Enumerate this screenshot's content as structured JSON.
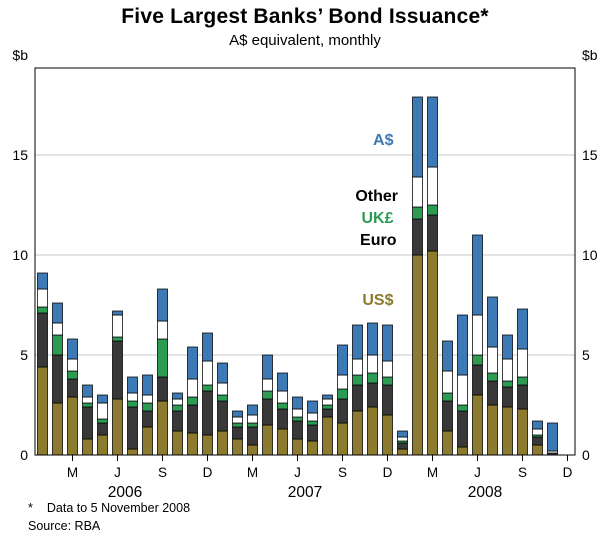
{
  "header": {
    "title": "Five Largest Banks’ Bond Issuance*",
    "subtitle": "A$ equivalent, monthly"
  },
  "chart_data": {
    "type": "bar",
    "stacked": true,
    "title": "Five Largest Banks’ Bond Issuance*",
    "subtitle": "A$ equivalent, monthly",
    "unit_label": "$b",
    "ylim": [
      0,
      19.35
    ],
    "yticks": [
      0,
      5,
      10,
      15
    ],
    "grid": true,
    "categories": [
      "Jan 2006",
      "Feb 2006",
      "Mar 2006",
      "Apr 2006",
      "May 2006",
      "Jun 2006",
      "Jul 2006",
      "Aug 2006",
      "Sep 2006",
      "Oct 2006",
      "Nov 2006",
      "Dec 2006",
      "Jan 2007",
      "Feb 2007",
      "Mar 2007",
      "Apr 2007",
      "May 2007",
      "Jun 2007",
      "Jul 2007",
      "Aug 2007",
      "Sep 2007",
      "Oct 2007",
      "Nov 2007",
      "Dec 2007",
      "Jan 2008",
      "Feb 2008",
      "Mar 2008",
      "Apr 2008",
      "May 2008",
      "Jun 2008",
      "Jul 2008",
      "Aug 2008",
      "Sep 2008",
      "Oct 2008",
      "Nov 2008"
    ],
    "series": [
      {
        "name": "US$",
        "color": "#8C7A2E",
        "values": [
          4.4,
          2.6,
          2.9,
          0.8,
          1.0,
          2.8,
          0.3,
          1.4,
          2.7,
          1.2,
          1.1,
          1.0,
          1.2,
          0.8,
          0.5,
          1.5,
          1.3,
          0.8,
          0.7,
          1.9,
          1.6,
          2.2,
          2.4,
          2.0,
          0.3,
          10.0,
          10.2,
          1.2,
          0.4,
          3.0,
          2.5,
          2.4,
          2.3,
          0.5,
          0.0
        ]
      },
      {
        "name": "Euro",
        "color": "#383838",
        "values": [
          2.7,
          2.4,
          0.9,
          1.6,
          0.6,
          2.9,
          2.1,
          0.8,
          1.2,
          1.0,
          1.4,
          2.2,
          1.5,
          0.6,
          0.9,
          1.3,
          1.0,
          0.9,
          0.8,
          0.4,
          1.2,
          1.3,
          1.2,
          1.5,
          0.3,
          1.8,
          1.8,
          1.5,
          1.8,
          1.5,
          1.2,
          1.0,
          1.2,
          0.4,
          0.1
        ]
      },
      {
        "name": "UK£",
        "color": "#2E9B53",
        "values": [
          0.3,
          1.0,
          0.4,
          0.2,
          0.2,
          0.2,
          0.3,
          0.4,
          1.9,
          0.3,
          0.4,
          0.3,
          0.3,
          0.2,
          0.2,
          0.4,
          0.3,
          0.2,
          0.2,
          0.2,
          0.5,
          0.5,
          0.5,
          0.4,
          0.1,
          0.6,
          0.5,
          0.4,
          0.3,
          0.5,
          0.4,
          0.3,
          0.4,
          0.1,
          0.0
        ]
      },
      {
        "name": "Other",
        "color": "#FFFFFF",
        "values": [
          0.9,
          0.6,
          0.6,
          0.3,
          0.8,
          1.1,
          0.4,
          0.4,
          0.9,
          0.3,
          0.9,
          1.2,
          0.6,
          0.3,
          0.4,
          0.6,
          0.6,
          0.4,
          0.4,
          0.3,
          0.7,
          0.8,
          0.9,
          0.8,
          0.2,
          1.5,
          1.9,
          1.1,
          1.5,
          2.0,
          1.3,
          1.1,
          1.4,
          0.3,
          0.1
        ]
      },
      {
        "name": "A$",
        "color": "#3D7AB5",
        "values": [
          0.8,
          1.0,
          1.0,
          0.6,
          0.4,
          0.2,
          0.8,
          1.0,
          1.6,
          0.3,
          1.6,
          1.4,
          1.0,
          0.3,
          0.5,
          1.2,
          0.9,
          0.6,
          0.6,
          0.2,
          1.5,
          1.7,
          1.6,
          1.8,
          0.3,
          4.0,
          3.5,
          1.5,
          3.0,
          4.0,
          2.5,
          1.2,
          2.0,
          0.4,
          1.4
        ]
      }
    ],
    "xticks": [
      {
        "index": 2,
        "label": "M"
      },
      {
        "index": 5,
        "label": "J"
      },
      {
        "index": 8,
        "label": "S"
      },
      {
        "index": 11,
        "label": "D"
      },
      {
        "index": 14,
        "label": "M"
      },
      {
        "index": 17,
        "label": "J"
      },
      {
        "index": 20,
        "label": "S"
      },
      {
        "index": 23,
        "label": "D"
      },
      {
        "index": 26,
        "label": "M"
      },
      {
        "index": 29,
        "label": "J"
      },
      {
        "index": 32,
        "label": "S"
      },
      {
        "index": 35,
        "label": "D"
      }
    ],
    "year_labels": [
      {
        "label": "2006",
        "center_index": 5.5
      },
      {
        "label": "2007",
        "center_index": 17.5
      },
      {
        "label": "2008",
        "center_index": 29.5
      }
    ],
    "annotations": [
      {
        "text": "A$",
        "color": "#3D7AB5",
        "x": 23.4,
        "y": 15.75
      },
      {
        "text": "Other",
        "color": "#000000",
        "x": 23.7,
        "y": 12.95
      },
      {
        "text": "UK£",
        "color": "#2E9B53",
        "x": 23.4,
        "y": 11.85
      },
      {
        "text": "Euro",
        "color": "#000000",
        "x": 23.6,
        "y": 10.75
      },
      {
        "text": "US$",
        "color": "#8C7A2E",
        "x": 23.4,
        "y": 7.75
      }
    ],
    "legend_position": "inside-plot"
  },
  "footnotes": {
    "marker": "*",
    "line1": "Data to 5 November 2008",
    "line2": "Source: RBA"
  }
}
